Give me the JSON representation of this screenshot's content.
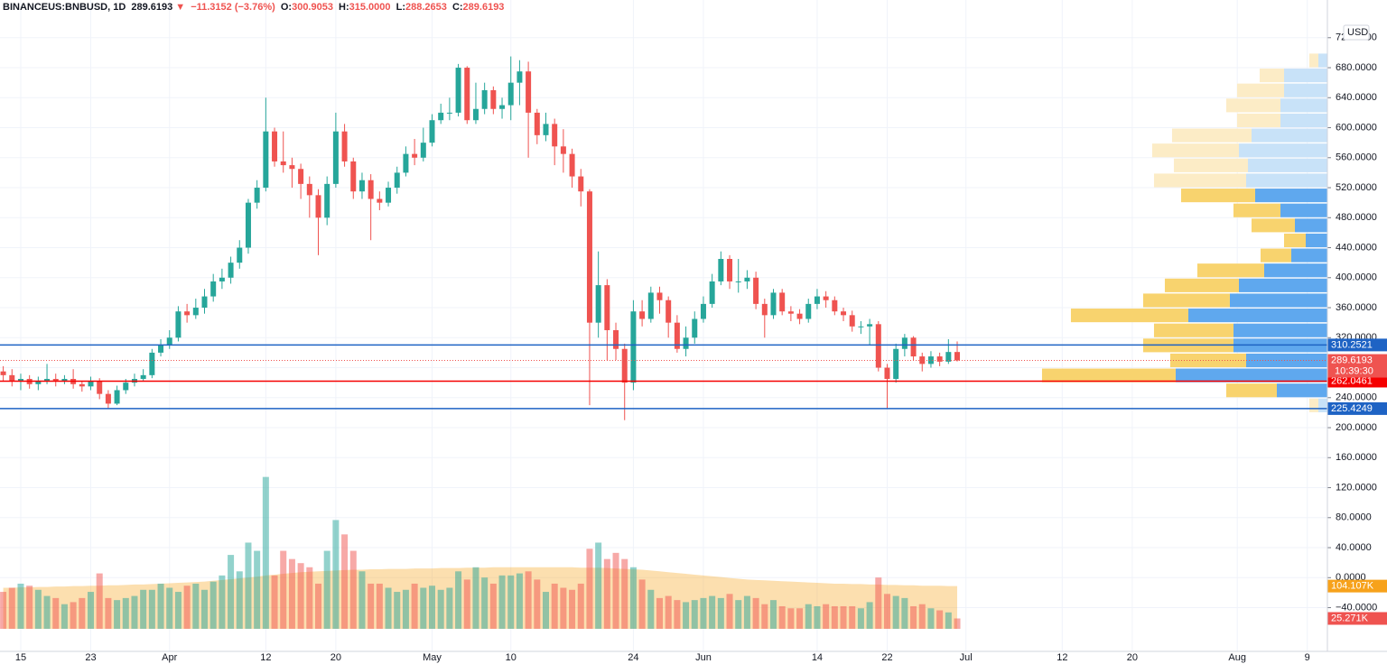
{
  "header": {
    "symbol": "BINANCEUS:BNBUSD, 1D",
    "last": "289.6193",
    "arrow": "▼",
    "change": "−11.3152 (−3.76%)",
    "o_label": "O:",
    "o": "300.9053",
    "h_label": "H:",
    "h": "315.0000",
    "l_label": "L:",
    "l": "288.2653",
    "c_label": "C:",
    "c": "289.6193",
    "currency": "USD",
    "countdown": "10:39:30"
  },
  "chart_data": {
    "type": "candlestick",
    "up_color": "#26a69a",
    "down_color": "#ef5350",
    "grid": true,
    "ylim": [
      -98.3,
      746.2
    ],
    "yticks": [
      {
        "value": -40,
        "label": "−40.0000"
      },
      {
        "value": 0,
        "label": "0.0000"
      },
      {
        "value": 40,
        "label": "40.0000"
      },
      {
        "value": 80,
        "label": "80.0000"
      },
      {
        "value": 120,
        "label": "120.0000"
      },
      {
        "value": 160,
        "label": "160.0000"
      },
      {
        "value": 200,
        "label": "200.0000"
      },
      {
        "value": 240,
        "label": "240.0000"
      },
      {
        "value": 280,
        "label": "280.0000"
      },
      {
        "value": 320,
        "label": "320.0000"
      },
      {
        "value": 360,
        "label": "360.0000"
      },
      {
        "value": 400,
        "label": "400.0000"
      },
      {
        "value": 440,
        "label": "440.0000"
      },
      {
        "value": 480,
        "label": "480.0000"
      },
      {
        "value": 520,
        "label": "520.0000"
      },
      {
        "value": 560,
        "label": "560.0000"
      },
      {
        "value": 600,
        "label": "600.0000"
      },
      {
        "value": 640,
        "label": "640.0000"
      },
      {
        "value": 680,
        "label": "680.0000"
      },
      {
        "value": 720,
        "label": "720.0000"
      }
    ],
    "xlim": [
      -0.37,
      151.3
    ],
    "xticks": [
      {
        "value": 2,
        "label": "15"
      },
      {
        "value": 10,
        "label": "23"
      },
      {
        "value": 19,
        "label": "Apr"
      },
      {
        "value": 30,
        "label": "12"
      },
      {
        "value": 38,
        "label": "20"
      },
      {
        "value": 49,
        "label": "May"
      },
      {
        "value": 58,
        "label": "10"
      },
      {
        "value": 72,
        "label": "24"
      },
      {
        "value": 80,
        "label": "Jun"
      },
      {
        "value": 93,
        "label": "14"
      },
      {
        "value": 101,
        "label": "22"
      },
      {
        "value": 110,
        "label": "Jul"
      },
      {
        "value": 121,
        "label": "12"
      },
      {
        "value": 129,
        "label": "20"
      },
      {
        "value": 141,
        "label": "Aug"
      },
      {
        "value": 149,
        "label": "9"
      }
    ],
    "open": [
      275,
      270,
      262,
      265,
      258,
      262,
      265,
      262,
      265,
      258,
      255,
      262,
      245,
      232,
      250,
      260,
      265,
      270,
      300,
      310,
      320,
      355,
      350,
      360,
      375,
      395,
      400,
      420,
      440,
      500,
      520,
      595,
      555,
      550,
      545,
      525,
      510,
      480,
      525,
      595,
      555,
      515,
      530,
      505,
      500,
      520,
      540,
      565,
      560,
      580,
      610,
      620,
      620,
      680,
      610,
      625,
      650,
      625,
      630,
      660,
      675,
      620,
      590,
      605,
      575,
      565,
      535,
      515,
      340,
      390,
      330,
      305,
      260,
      355,
      345,
      380,
      370,
      340,
      305,
      320,
      345,
      365,
      395,
      425,
      395,
      395,
      400,
      365,
      350,
      380,
      355,
      352,
      345,
      365,
      375,
      370,
      355,
      350,
      335,
      335,
      338,
      280,
      265,
      305,
      320,
      295,
      285,
      295,
      288,
      300.9053
    ],
    "high": [
      282,
      278,
      272,
      270,
      268,
      285,
      272,
      270,
      278,
      262,
      268,
      266,
      250,
      256,
      265,
      272,
      278,
      305,
      318,
      330,
      362,
      365,
      372,
      385,
      405,
      412,
      428,
      450,
      505,
      530,
      640,
      600,
      595,
      560,
      552,
      535,
      518,
      535,
      620,
      605,
      560,
      540,
      538,
      515,
      528,
      548,
      575,
      585,
      600,
      618,
      632,
      640,
      685,
      682,
      660,
      660,
      655,
      640,
      695,
      690,
      688,
      625,
      620,
      612,
      598,
      572,
      545,
      518,
      435,
      398,
      340,
      312,
      370,
      370,
      388,
      388,
      375,
      350,
      335,
      355,
      375,
      405,
      435,
      430,
      425,
      410,
      408,
      372,
      385,
      385,
      362,
      358,
      372,
      385,
      382,
      375,
      360,
      356,
      342,
      345,
      342,
      285,
      312,
      325,
      322,
      300,
      302,
      300,
      318,
      315
    ],
    "low": [
      262,
      255,
      250,
      252,
      250,
      258,
      255,
      258,
      252,
      248,
      250,
      238,
      225,
      230,
      245,
      255,
      262,
      266,
      295,
      305,
      315,
      340,
      345,
      352,
      368,
      385,
      392,
      412,
      432,
      492,
      515,
      548,
      540,
      520,
      505,
      480,
      430,
      470,
      520,
      548,
      505,
      505,
      450,
      490,
      495,
      512,
      535,
      550,
      555,
      575,
      605,
      610,
      615,
      605,
      605,
      618,
      618,
      612,
      610,
      630,
      560,
      578,
      582,
      550,
      540,
      520,
      495,
      230,
      320,
      290,
      290,
      210,
      250,
      335,
      340,
      352,
      320,
      300,
      295,
      312,
      340,
      360,
      390,
      385,
      380,
      385,
      358,
      320,
      345,
      350,
      342,
      338,
      340,
      358,
      360,
      350,
      342,
      328,
      325,
      310,
      275,
      225,
      260,
      295,
      290,
      275,
      280,
      282,
      285,
      288.2653
    ],
    "close": [
      270,
      262,
      265,
      258,
      262,
      265,
      262,
      265,
      258,
      255,
      262,
      245,
      232,
      250,
      260,
      265,
      270,
      300,
      310,
      320,
      355,
      350,
      360,
      375,
      395,
      400,
      420,
      440,
      500,
      520,
      595,
      555,
      550,
      545,
      525,
      510,
      480,
      525,
      595,
      555,
      515,
      530,
      505,
      500,
      520,
      540,
      565,
      560,
      580,
      610,
      620,
      620,
      680,
      610,
      625,
      650,
      625,
      630,
      660,
      675,
      620,
      590,
      605,
      575,
      565,
      535,
      515,
      340,
      390,
      330,
      305,
      260,
      355,
      345,
      380,
      370,
      340,
      305,
      320,
      345,
      365,
      395,
      425,
      395,
      395,
      400,
      365,
      350,
      380,
      355,
      352,
      345,
      365,
      375,
      370,
      355,
      350,
      335,
      335,
      338,
      280,
      265,
      305,
      320,
      295,
      285,
      295,
      288,
      300.9053,
      289.6193
    ],
    "volume": {
      "vlim": [
        0,
        800000
      ],
      "last_label": "25.271K",
      "values": [
        90000,
        100000,
        110000,
        105000,
        95000,
        80000,
        75000,
        60000,
        65000,
        75000,
        90000,
        135000,
        75000,
        70000,
        75000,
        80000,
        95000,
        95000,
        110000,
        100000,
        90000,
        105000,
        110000,
        95000,
        115000,
        130000,
        180000,
        140000,
        210000,
        190000,
        370000,
        130000,
        190000,
        170000,
        160000,
        150000,
        110000,
        190000,
        265000,
        230000,
        190000,
        140000,
        110000,
        110000,
        100000,
        90000,
        95000,
        110000,
        100000,
        105000,
        95000,
        100000,
        140000,
        120000,
        150000,
        125000,
        110000,
        130000,
        130000,
        135000,
        140000,
        120000,
        90000,
        110000,
        100000,
        95000,
        110000,
        195000,
        210000,
        170000,
        185000,
        170000,
        150000,
        120000,
        95000,
        75000,
        80000,
        70000,
        65000,
        70000,
        75000,
        80000,
        75000,
        85000,
        70000,
        80000,
        75000,
        60000,
        70000,
        55000,
        50000,
        50000,
        60000,
        55000,
        60000,
        55000,
        55000,
        55000,
        50000,
        65000,
        125000,
        85000,
        80000,
        75000,
        55000,
        60000,
        50000,
        45000,
        40000,
        25271
      ]
    },
    "volume_ma": {
      "color": "#f7a21b",
      "last_label": "104.107K",
      "values": [
        100000,
        100000,
        101000,
        101000,
        102000,
        102000,
        103000,
        103000,
        104000,
        104000,
        105000,
        105000,
        106000,
        106000,
        107000,
        108000,
        108000,
        109000,
        110000,
        111000,
        112000,
        113000,
        114000,
        115000,
        117000,
        119000,
        121000,
        123000,
        125000,
        127000,
        130000,
        132000,
        134000,
        136000,
        138000,
        139000,
        140000,
        141000,
        142000,
        143000,
        144000,
        144000,
        145000,
        145000,
        146000,
        146000,
        146000,
        147000,
        147000,
        147000,
        148000,
        148000,
        148000,
        149000,
        149000,
        149000,
        150000,
        150000,
        150000,
        150000,
        150000,
        150000,
        150000,
        150000,
        150000,
        150000,
        149000,
        149000,
        149000,
        148000,
        147000,
        146000,
        145000,
        144000,
        142000,
        140000,
        138000,
        136000,
        134000,
        132000,
        130000,
        128000,
        126000,
        124000,
        122000,
        120000,
        119000,
        118000,
        117000,
        116000,
        115000,
        114000,
        113000,
        112000,
        111000,
        110000,
        110000,
        109000,
        109000,
        108000,
        108000,
        107000,
        107000,
        106000,
        106000,
        105000,
        105000,
        105000,
        104000,
        104107
      ]
    },
    "levels": [
      {
        "value": 310.2521,
        "color": "#1e63c4"
      },
      {
        "value": 262.0461,
        "color": "#f50000"
      },
      {
        "value": 225.4249,
        "color": "#1e63c4"
      }
    ],
    "volume_profile": {
      "bins": [
        220,
        240,
        260,
        280,
        300,
        320,
        340,
        360,
        380,
        400,
        420,
        440,
        460,
        480,
        500,
        520,
        540,
        560,
        580,
        600,
        620,
        640,
        660,
        680,
        700
      ],
      "up": [
        10,
        56,
        168,
        90,
        104,
        104,
        154,
        108,
        98,
        70,
        40,
        24,
        36,
        52,
        80,
        90,
        88,
        98,
        84,
        52,
        52,
        48,
        48,
        10
      ],
      "down": [
        10,
        56,
        148,
        84,
        100,
        88,
        130,
        96,
        82,
        74,
        34,
        24,
        48,
        52,
        82,
        102,
        82,
        96,
        88,
        48,
        60,
        52,
        27,
        10
      ],
      "value_area": [
        240,
        520
      ],
      "up_color": "#5fa8ee",
      "down_color": "#f8d36e",
      "up_color_outside": "#c8e2f8",
      "down_color_outside": "#fcecc6"
    }
  }
}
